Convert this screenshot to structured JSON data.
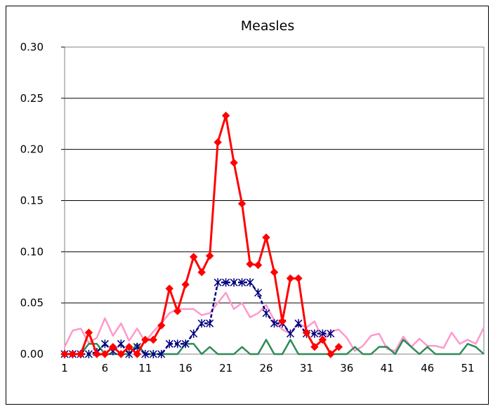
{
  "chart_data": {
    "type": "line",
    "title": "Measles",
    "xlabel": "",
    "ylabel": "",
    "ylim": [
      0,
      0.3
    ],
    "yticks": [
      "0.00",
      "0.05",
      "0.10",
      "0.15",
      "0.20",
      "0.25",
      "0.30"
    ],
    "xticks": [
      "1",
      "6",
      "11",
      "16",
      "21",
      "26",
      "31",
      "36",
      "41",
      "46",
      "51"
    ],
    "xlim": [
      1,
      53
    ],
    "grid": "horizontal",
    "legend": "none",
    "series": [
      {
        "color": "#ff99cc",
        "marker": "none",
        "x": [
          1,
          2,
          3,
          4,
          5,
          6,
          7,
          8,
          9,
          10,
          11,
          12,
          13,
          14,
          15,
          16,
          17,
          18,
          19,
          20,
          21,
          22,
          23,
          24,
          25,
          26,
          27,
          28,
          29,
          30,
          31,
          32,
          33,
          34,
          35,
          36,
          37,
          38,
          39,
          40,
          41,
          42,
          43,
          44,
          45,
          46,
          47,
          48,
          49,
          50,
          51,
          52,
          53
        ],
        "values": [
          0.007,
          0.023,
          0.025,
          0.011,
          0.016,
          0.035,
          0.018,
          0.03,
          0.013,
          0.025,
          0.012,
          0.022,
          0.03,
          0.04,
          0.044,
          0.044,
          0.044,
          0.038,
          0.04,
          0.05,
          0.06,
          0.044,
          0.05,
          0.036,
          0.04,
          0.048,
          0.033,
          0.024,
          0.02,
          0.03,
          0.026,
          0.032,
          0.014,
          0.022,
          0.024,
          0.016,
          0.003,
          0.008,
          0.018,
          0.02,
          0.005,
          0.003,
          0.017,
          0.007,
          0.015,
          0.008,
          0.008,
          0.006,
          0.021,
          0.01,
          0.014,
          0.01,
          0.026
        ]
      },
      {
        "color": "#2e8b57",
        "marker": "none",
        "x": [
          1,
          2,
          3,
          4,
          5,
          6,
          7,
          8,
          9,
          10,
          11,
          12,
          13,
          14,
          15,
          16,
          17,
          18,
          19,
          20,
          21,
          22,
          23,
          24,
          25,
          26,
          27,
          28,
          29,
          30,
          31,
          32,
          33,
          34,
          35,
          36,
          37,
          38,
          39,
          40,
          41,
          42,
          43,
          44,
          45,
          46,
          47,
          48,
          49,
          50,
          51,
          52,
          53
        ],
        "values": [
          0,
          0,
          0,
          0.01,
          0.01,
          0,
          0,
          0,
          0,
          0.01,
          0,
          0,
          0,
          0,
          0,
          0.01,
          0.01,
          0,
          0.007,
          0,
          0,
          0,
          0.007,
          0,
          0,
          0.014,
          0,
          0,
          0.014,
          0,
          0,
          0,
          0,
          0,
          0,
          0,
          0.007,
          0,
          0,
          0.007,
          0.007,
          0,
          0.014,
          0.007,
          0,
          0.007,
          0,
          0,
          0,
          0,
          0.01,
          0.007,
          0
        ]
      },
      {
        "color": "#000080",
        "marker": "star",
        "dash": true,
        "x": [
          1,
          2,
          3,
          4,
          5,
          6,
          7,
          8,
          9,
          10,
          11,
          12,
          13,
          14,
          15,
          16,
          17,
          18,
          19,
          20,
          21,
          22,
          23,
          24,
          25,
          26,
          27,
          28,
          29,
          30,
          31,
          32,
          33,
          34
        ],
        "values": [
          0,
          0,
          0,
          0,
          0.002,
          0.01,
          0.003,
          0.01,
          0,
          0.007,
          0,
          0,
          0,
          0.01,
          0.01,
          0.01,
          0.02,
          0.03,
          0.03,
          0.07,
          0.07,
          0.07,
          0.07,
          0.07,
          0.06,
          0.04,
          0.03,
          0.03,
          0.02,
          0.03,
          0.02,
          0.02,
          0.02,
          0.02
        ]
      },
      {
        "color": "#ff0000",
        "marker": "diamond",
        "x": [
          1,
          2,
          3,
          4,
          5,
          6,
          7,
          8,
          9,
          10,
          11,
          12,
          13,
          14,
          15,
          16,
          17,
          18,
          19,
          20,
          21,
          22,
          23,
          24,
          25,
          26,
          27,
          28,
          29,
          30,
          31,
          32,
          33,
          34,
          35
        ],
        "values": [
          0,
          0,
          0,
          0.021,
          0,
          0,
          0.007,
          0,
          0.007,
          0,
          0.014,
          0.014,
          0.028,
          0.064,
          0.042,
          0.068,
          0.095,
          0.08,
          0.096,
          0.207,
          0.233,
          0.187,
          0.147,
          0.088,
          0.087,
          0.114,
          0.08,
          0.032,
          0.074,
          0.074,
          0.021,
          0.007,
          0.014,
          0,
          0.007
        ]
      }
    ]
  }
}
